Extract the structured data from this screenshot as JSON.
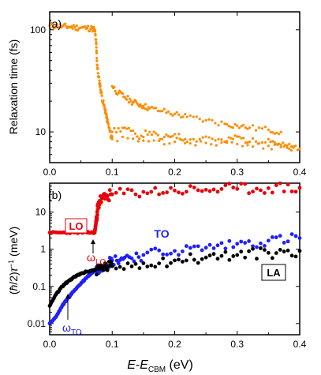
{
  "chart_data": [
    {
      "type": "scatter",
      "panel_label": "(a)",
      "ylabel": "Relaxation time (fs)",
      "xlim": [
        0.0,
        0.4
      ],
      "ylim": [
        5,
        150
      ],
      "yscale": "log",
      "x_ticks": [
        "0.0",
        "0.1",
        "0.2",
        "0.3",
        "0.4"
      ],
      "y_ticks": [
        "10",
        "100"
      ],
      "grid": false,
      "series": [
        {
          "color": "#ff8c00",
          "points": [
            [
              0.0,
              110
            ],
            [
              0.01,
              109
            ],
            [
              0.02,
              108
            ],
            [
              0.03,
              107
            ],
            [
              0.04,
              106
            ],
            [
              0.05,
              105
            ],
            [
              0.06,
              104
            ],
            [
              0.068,
              103
            ],
            [
              0.072,
              100
            ],
            [
              0.074,
              80
            ],
            [
              0.075,
              60
            ],
            [
              0.076,
              45
            ],
            [
              0.078,
              35
            ],
            [
              0.08,
              30
            ],
            [
              0.082,
              25
            ],
            [
              0.085,
              20
            ],
            [
              0.088,
              17
            ],
            [
              0.09,
              15
            ],
            [
              0.092,
              13
            ],
            [
              0.095,
              11
            ],
            [
              0.098,
              9
            ],
            [
              0.1,
              9
            ],
            [
              0.1,
              28
            ],
            [
              0.11,
              24
            ],
            [
              0.12,
              22
            ],
            [
              0.13,
              20
            ],
            [
              0.14,
              19
            ],
            [
              0.15,
              18
            ],
            [
              0.16,
              17
            ],
            [
              0.18,
              16
            ],
            [
              0.2,
              15
            ],
            [
              0.22,
              14
            ],
            [
              0.25,
              13
            ],
            [
              0.28,
              12
            ],
            [
              0.3,
              11.5
            ],
            [
              0.32,
              11
            ],
            [
              0.35,
              10.5
            ],
            [
              0.37,
              10
            ],
            [
              0.1,
              10
            ],
            [
              0.12,
              11
            ],
            [
              0.14,
              9
            ],
            [
              0.16,
              10
            ],
            [
              0.18,
              8.5
            ],
            [
              0.2,
              9.5
            ],
            [
              0.22,
              8
            ],
            [
              0.25,
              9
            ],
            [
              0.28,
              8
            ],
            [
              0.3,
              9
            ],
            [
              0.32,
              8
            ],
            [
              0.35,
              8.5
            ],
            [
              0.37,
              7.5
            ],
            [
              0.39,
              7
            ],
            [
              0.1,
              8.5
            ],
            [
              0.15,
              8.2
            ],
            [
              0.2,
              8
            ],
            [
              0.25,
              7.8
            ],
            [
              0.3,
              7.6
            ],
            [
              0.35,
              7.3
            ],
            [
              0.38,
              7
            ],
            [
              0.4,
              6.8
            ]
          ]
        }
      ]
    },
    {
      "type": "scatter",
      "panel_label": "(b)",
      "xlabel": "E-E_CBM (eV)",
      "ylabel": "(ħ/2)τ⁻¹ (meV)",
      "xlim": [
        0.0,
        0.4
      ],
      "ylim": [
        0.005,
        60
      ],
      "yscale": "log",
      "x_ticks": [
        "0.0",
        "0.1",
        "0.2",
        "0.3",
        "0.4"
      ],
      "y_ticks": [
        "0.01",
        "0.1",
        "1",
        "10"
      ],
      "grid": false,
      "series": [
        {
          "name": "LO",
          "color": "#e8000b",
          "points": [
            [
              0.0,
              2.8
            ],
            [
              0.02,
              2.8
            ],
            [
              0.04,
              2.8
            ],
            [
              0.06,
              2.8
            ],
            [
              0.072,
              2.8
            ],
            [
              0.074,
              5
            ],
            [
              0.076,
              10
            ],
            [
              0.078,
              15
            ],
            [
              0.08,
              20
            ],
            [
              0.09,
              25
            ],
            [
              0.1,
              30
            ],
            [
              0.15,
              35
            ],
            [
              0.2,
              38
            ],
            [
              0.25,
              40
            ],
            [
              0.3,
              42
            ],
            [
              0.35,
              44
            ],
            [
              0.4,
              45
            ]
          ]
        },
        {
          "name": "TO",
          "color": "#1f1fff",
          "points": [
            [
              0.0,
              0.01
            ],
            [
              0.01,
              0.015
            ],
            [
              0.02,
              0.03
            ],
            [
              0.03,
              0.05
            ],
            [
              0.04,
              0.08
            ],
            [
              0.05,
              0.12
            ],
            [
              0.06,
              0.18
            ],
            [
              0.07,
              0.25
            ],
            [
              0.08,
              0.33
            ],
            [
              0.09,
              0.4
            ],
            [
              0.1,
              0.5
            ],
            [
              0.12,
              0.6
            ],
            [
              0.15,
              0.7
            ],
            [
              0.2,
              0.9
            ],
            [
              0.25,
              1.1
            ],
            [
              0.3,
              1.4
            ],
            [
              0.35,
              1.7
            ],
            [
              0.4,
              2.0
            ]
          ]
        },
        {
          "name": "LA",
          "color": "#000000",
          "points": [
            [
              0.0,
              0.03
            ],
            [
              0.01,
              0.06
            ],
            [
              0.02,
              0.1
            ],
            [
              0.03,
              0.14
            ],
            [
              0.04,
              0.18
            ],
            [
              0.05,
              0.22
            ],
            [
              0.06,
              0.25
            ],
            [
              0.07,
              0.27
            ],
            [
              0.08,
              0.3
            ],
            [
              0.09,
              0.33
            ],
            [
              0.1,
              0.35
            ],
            [
              0.15,
              0.42
            ],
            [
              0.2,
              0.5
            ],
            [
              0.25,
              0.6
            ],
            [
              0.3,
              0.7
            ],
            [
              0.35,
              0.8
            ],
            [
              0.4,
              0.9
            ]
          ]
        }
      ],
      "annotations": [
        {
          "text": "LO",
          "color": "#e8000b",
          "boxed": true
        },
        {
          "text": "TO",
          "color": "#1f1fff",
          "boxed": false
        },
        {
          "text": "LA",
          "color": "#000000",
          "boxed": true
        },
        {
          "text": "ω_LO",
          "color": "#e8000b",
          "x": 0.074,
          "y": 2.8
        },
        {
          "text": "ω_TO",
          "color": "#1f1fff",
          "x": 0.03,
          "y": 0.03
        }
      ]
    }
  ]
}
